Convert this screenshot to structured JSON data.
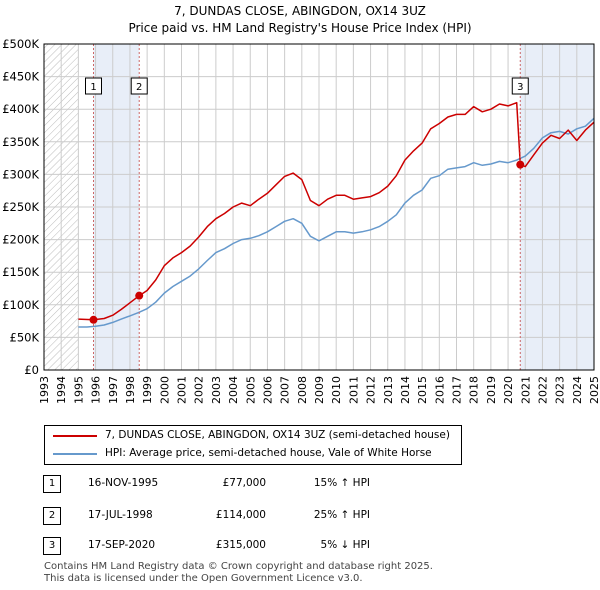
{
  "title": "7, DUNDAS CLOSE, ABINGDON, OX14 3UZ",
  "subtitle": "Price paid vs. HM Land Registry's House Price Index (HPI)",
  "chart_data": {
    "type": "line",
    "x_range": [
      1993,
      2025
    ],
    "ylim": [
      0,
      500000
    ],
    "y_ticks": [
      0,
      50000,
      100000,
      150000,
      200000,
      250000,
      300000,
      350000,
      400000,
      450000,
      500000
    ],
    "y_tick_labels": [
      "£0",
      "£50K",
      "£100K",
      "£150K",
      "£200K",
      "£250K",
      "£300K",
      "£350K",
      "£400K",
      "£450K",
      "£500K"
    ],
    "x_ticks": [
      1993,
      1994,
      1995,
      1996,
      1997,
      1998,
      1999,
      2000,
      2001,
      2002,
      2003,
      2004,
      2005,
      2006,
      2007,
      2008,
      2009,
      2010,
      2011,
      2012,
      2013,
      2014,
      2015,
      2016,
      2017,
      2018,
      2019,
      2020,
      2021,
      2022,
      2023,
      2024,
      2025
    ],
    "hatched_ranges": [
      [
        1993,
        1995.0
      ],
      [
        2025.0,
        2025.2
      ]
    ],
    "shaded_ranges": [
      [
        1995.88,
        1998.54
      ],
      [
        2020.71,
        2025.0
      ]
    ],
    "grid": true,
    "series": [
      {
        "name": "7, DUNDAS CLOSE, ABINGDON, OX14 3UZ (semi-detached house)",
        "color": "#cc0000",
        "x": [
          1995.0,
          1995.88,
          1996.5,
          1997.0,
          1997.5,
          1998.0,
          1998.54,
          1999.0,
          1999.5,
          2000.0,
          2000.5,
          2001.0,
          2001.5,
          2002.0,
          2002.5,
          2003.0,
          2003.5,
          2004.0,
          2004.5,
          2005.0,
          2005.5,
          2006.0,
          2006.5,
          2007.0,
          2007.5,
          2008.0,
          2008.5,
          2009.0,
          2009.5,
          2010.0,
          2010.5,
          2011.0,
          2011.5,
          2012.0,
          2012.5,
          2013.0,
          2013.5,
          2014.0,
          2014.5,
          2015.0,
          2015.5,
          2016.0,
          2016.5,
          2017.0,
          2017.5,
          2018.0,
          2018.5,
          2019.0,
          2019.5,
          2020.0,
          2020.5,
          2020.71,
          2021.0,
          2021.5,
          2022.0,
          2022.5,
          2023.0,
          2023.5,
          2024.0,
          2024.5,
          2025.0
        ],
        "values": [
          78000,
          77000,
          79000,
          84000,
          93000,
          103000,
          114000,
          122000,
          138000,
          160000,
          172000,
          180000,
          190000,
          204000,
          220000,
          232000,
          240000,
          250000,
          256000,
          252000,
          262000,
          271000,
          284000,
          297000,
          302000,
          292000,
          260000,
          252000,
          262000,
          268000,
          268000,
          262000,
          264000,
          266000,
          272000,
          282000,
          298000,
          322000,
          336000,
          348000,
          370000,
          378000,
          388000,
          392000,
          392000,
          404000,
          396000,
          400000,
          408000,
          405000,
          410000,
          315000,
          312000,
          330000,
          348000,
          360000,
          355000,
          368000,
          352000,
          368000,
          380000
        ]
      },
      {
        "name": "HPI: Average price, semi-detached house, Vale of White Horse",
        "color": "#6699cc",
        "x": [
          1995.0,
          1995.5,
          1996.0,
          1996.5,
          1997.0,
          1997.5,
          1998.0,
          1998.5,
          1999.0,
          1999.5,
          2000.0,
          2000.5,
          2001.0,
          2001.5,
          2002.0,
          2002.5,
          2003.0,
          2003.5,
          2004.0,
          2004.5,
          2005.0,
          2005.5,
          2006.0,
          2006.5,
          2007.0,
          2007.5,
          2008.0,
          2008.5,
          2009.0,
          2009.5,
          2010.0,
          2010.5,
          2011.0,
          2011.5,
          2012.0,
          2012.5,
          2013.0,
          2013.5,
          2014.0,
          2014.5,
          2015.0,
          2015.5,
          2016.0,
          2016.5,
          2017.0,
          2017.5,
          2018.0,
          2018.5,
          2019.0,
          2019.5,
          2020.0,
          2020.5,
          2021.0,
          2021.5,
          2022.0,
          2022.5,
          2023.0,
          2023.5,
          2024.0,
          2024.5,
          2025.0
        ],
        "values": [
          66000,
          66000,
          67000,
          69000,
          73000,
          78000,
          83000,
          88000,
          94000,
          104000,
          118000,
          128000,
          136000,
          144000,
          155000,
          168000,
          180000,
          186000,
          194000,
          200000,
          202000,
          206000,
          212000,
          220000,
          228000,
          232000,
          225000,
          205000,
          198000,
          205000,
          212000,
          212000,
          210000,
          212000,
          215000,
          220000,
          228000,
          238000,
          256000,
          268000,
          276000,
          294000,
          298000,
          308000,
          310000,
          312000,
          318000,
          314000,
          316000,
          320000,
          318000,
          322000,
          328000,
          340000,
          356000,
          364000,
          366000,
          362000,
          370000,
          374000,
          386000
        ]
      }
    ],
    "sale_markers": [
      {
        "label": "1",
        "x": 1995.88,
        "value": 77000
      },
      {
        "label": "2",
        "x": 1998.54,
        "value": 114000
      },
      {
        "label": "3",
        "x": 2020.71,
        "value": 315000
      }
    ]
  },
  "legend": {
    "property_label": "7, DUNDAS CLOSE, ABINGDON, OX14 3UZ (semi-detached house)",
    "hpi_label": "HPI: Average price, semi-detached house, Vale of White Horse"
  },
  "sales": [
    {
      "num": "1",
      "date": "16-NOV-1995",
      "price": "£77,000",
      "hpi": "15% ↑ HPI"
    },
    {
      "num": "2",
      "date": "17-JUL-1998",
      "price": "£114,000",
      "hpi": "25% ↑ HPI"
    },
    {
      "num": "3",
      "date": "17-SEP-2020",
      "price": "£315,000",
      "hpi": "5% ↓ HPI"
    }
  ],
  "footer": {
    "line1": "Contains HM Land Registry data © Crown copyright and database right 2025.",
    "line2": "This data is licensed under the Open Government Licence v3.0."
  },
  "colors": {
    "property": "#cc0000",
    "hpi": "#6699cc",
    "shade": "#e8eef8",
    "grid": "#cccccc",
    "marker_line": "#cc6666"
  }
}
